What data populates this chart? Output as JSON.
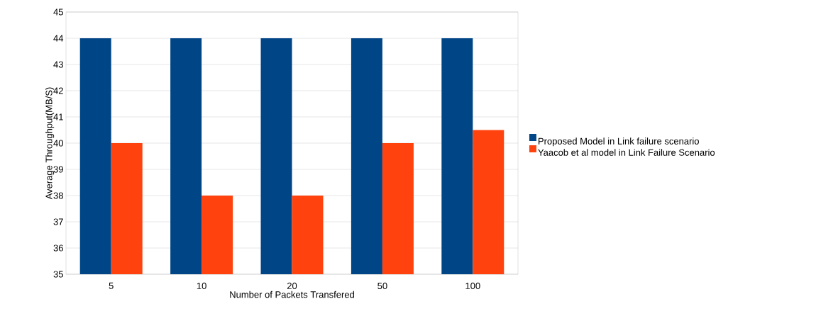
{
  "chart_data": {
    "type": "bar",
    "xlabel": "Number of Packets Transfered",
    "ylabel": "Average Throughput(MB/S)",
    "categories": [
      "5",
      "10",
      "20",
      "50",
      "100"
    ],
    "series": [
      {
        "name": "Proposed  Model in Link failure scenario",
        "color": "#004586",
        "values": [
          44,
          44,
          44,
          44,
          44
        ]
      },
      {
        "name": "Yaacob et al model in Link Failure Scenario",
        "color": "#ff420e",
        "values": [
          40,
          38,
          38,
          40,
          40.5
        ]
      }
    ],
    "ylim": [
      35,
      45
    ],
    "yticks": [
      35,
      36,
      37,
      38,
      39,
      40,
      41,
      42,
      43,
      44,
      45
    ],
    "grid": "y",
    "legend": "right"
  }
}
